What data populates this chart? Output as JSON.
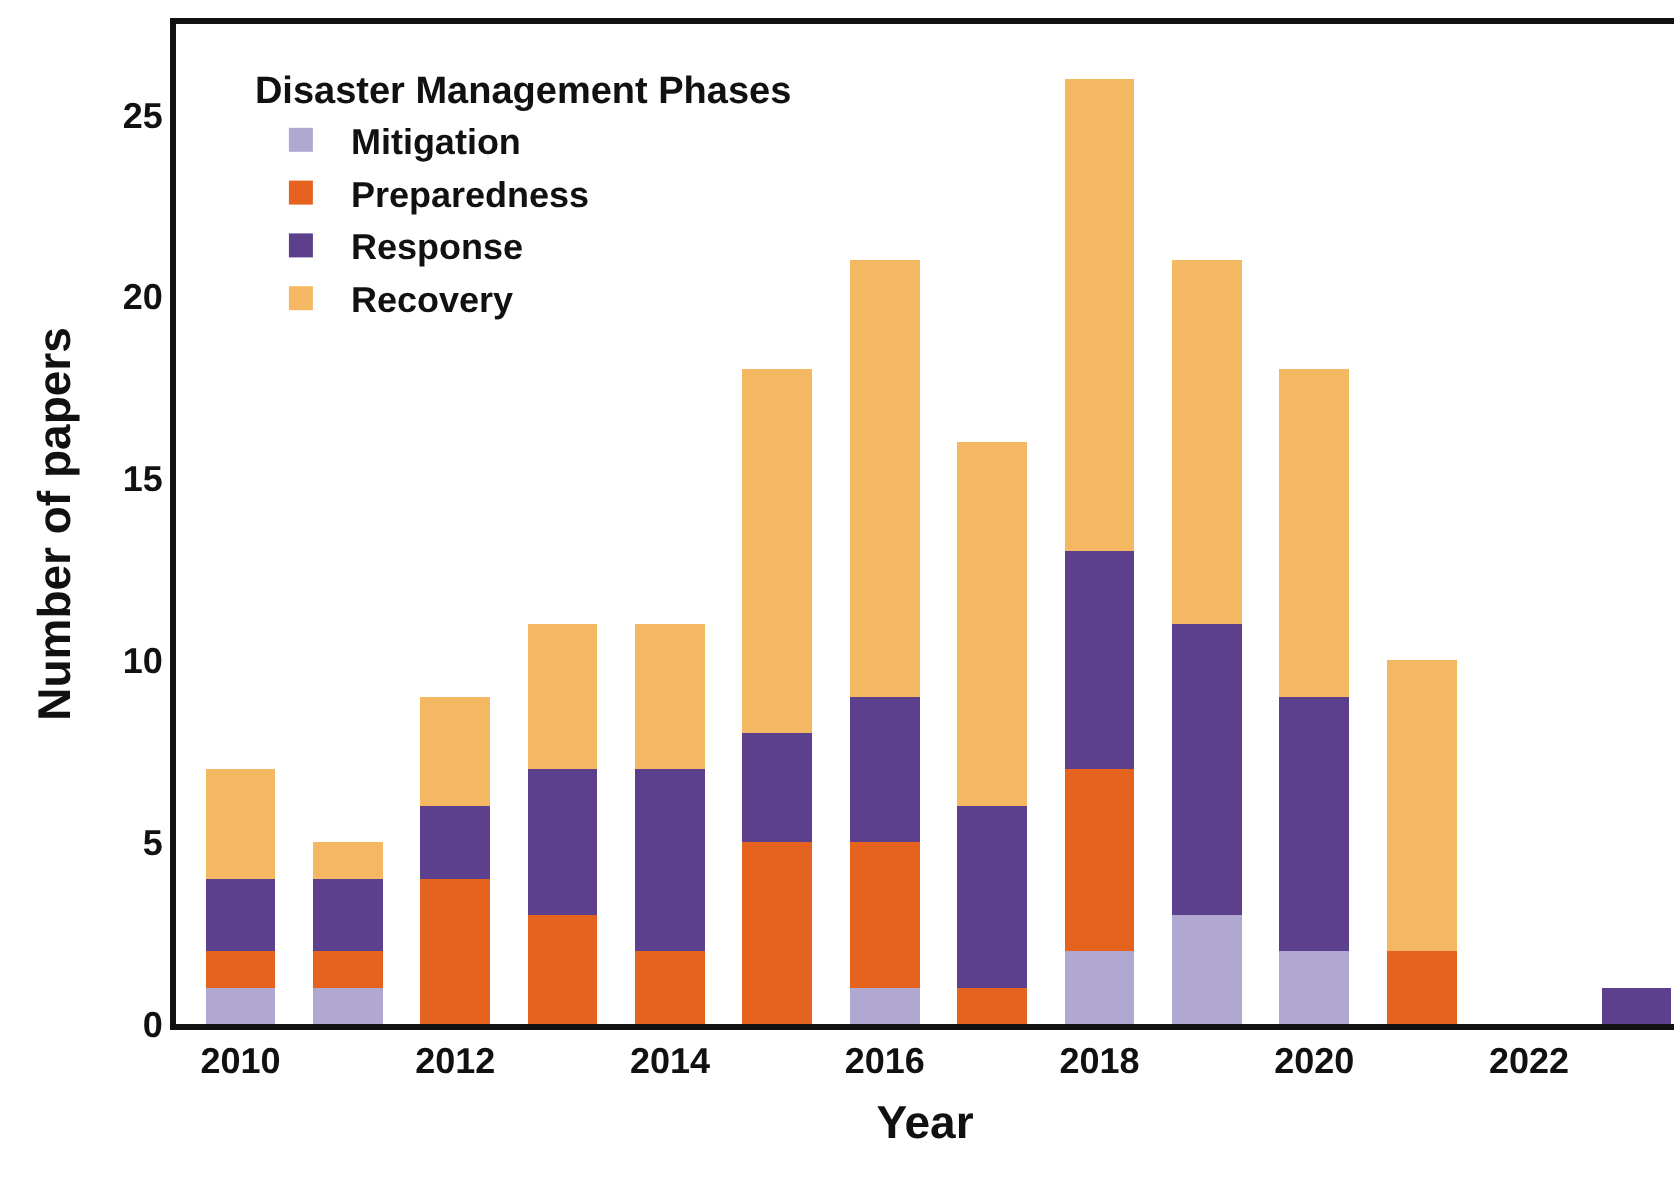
{
  "chart_data": {
    "type": "bar",
    "stacked": true,
    "xlabel": "Year",
    "ylabel": "Number of papers",
    "legend_title": "Disaster Management Phases",
    "legend": "top left",
    "grid": false,
    "x": [
      2010,
      2011,
      2012,
      2013,
      2014,
      2015,
      2016,
      2017,
      2018,
      2019,
      2020,
      2021,
      2022,
      2023
    ],
    "xlim": [
      2009.4,
      2023.35
    ],
    "xticks": [
      2010,
      2012,
      2014,
      2016,
      2018,
      2020,
      2022
    ],
    "ylim": [
      0,
      27.5
    ],
    "yticks": [
      0,
      5,
      10,
      15,
      20,
      25
    ],
    "series": [
      {
        "name": "Mitigation",
        "color": "#b0a8d0",
        "values": [
          1,
          1,
          0,
          0,
          0,
          0,
          1,
          0,
          2,
          3,
          2,
          0,
          0,
          0
        ]
      },
      {
        "name": "Preparedness",
        "color": "#e6621f",
        "values": [
          1,
          1,
          4,
          3,
          2,
          5,
          4,
          1,
          5,
          0,
          0,
          2,
          0,
          0
        ]
      },
      {
        "name": "Response",
        "color": "#5c408e",
        "values": [
          2,
          2,
          2,
          4,
          5,
          3,
          4,
          5,
          6,
          8,
          7,
          0,
          0,
          1
        ]
      },
      {
        "name": "Recovery",
        "color": "#f5b862",
        "values": [
          3,
          1,
          3,
          4,
          4,
          10,
          12,
          10,
          13,
          10,
          9,
          8,
          0,
          0
        ]
      }
    ]
  }
}
